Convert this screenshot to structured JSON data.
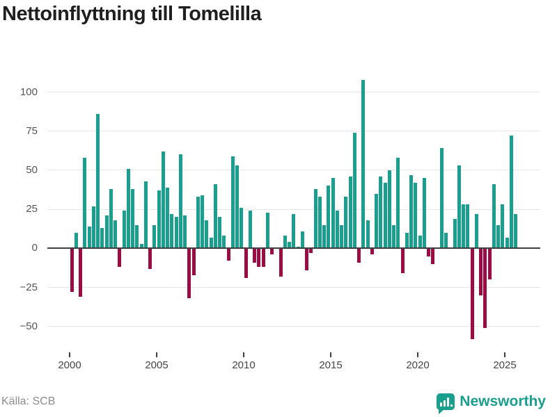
{
  "title": "Nettoinflyttning till Tomelilla",
  "footer": {
    "source": "Källa: SCB",
    "brand": "Newsworthy",
    "brand_icon": "newsworthy-speech-bubble-bar-chart-icon"
  },
  "colors": {
    "positive": "#1a9e8d",
    "negative": "#9b0c44",
    "grid": "#e6e6e6",
    "axis": "#3f3f3f",
    "title": "#1f1f1f",
    "tick_label": "#565656",
    "source_text": "#8c8c8c",
    "brand": "#1a9e8d"
  },
  "chart_data": {
    "type": "bar",
    "title": "Nettoinflyttning till Tomelilla",
    "xlabel": "",
    "ylabel": "",
    "frequency": "quarterly",
    "x_start_year": 2000,
    "points_per_year": 4,
    "x_end": "2025 Q3",
    "grid": true,
    "yticks": [
      100,
      75,
      50,
      25,
      0,
      -25,
      -50
    ],
    "ytick_labels": [
      "100",
      "75",
      "50",
      "25",
      "0",
      "−25",
      "−50"
    ],
    "xticks": [
      2000,
      2005,
      2010,
      2015,
      2020,
      2025
    ],
    "xtick_labels": [
      "2000",
      "2005",
      "2010",
      "2015",
      "2020",
      "2025"
    ],
    "ylim": [
      -62,
      112
    ],
    "positive_color": "#1a9e8d",
    "negative_color": "#9b0c44",
    "values": [
      -28,
      10,
      -31,
      58,
      14,
      27,
      86,
      13,
      21,
      38,
      18,
      -12,
      24,
      51,
      38,
      15,
      3,
      43,
      -13,
      15,
      37,
      62,
      39,
      22,
      20,
      60,
      21,
      -32,
      -17,
      33,
      34,
      18,
      7,
      41,
      20,
      8,
      -8,
      59,
      53,
      26,
      -19,
      24,
      -9,
      -12,
      -12,
      23,
      -4,
      0,
      -18,
      8,
      4,
      22,
      1,
      11,
      -14,
      -3,
      38,
      33,
      15,
      40,
      45,
      24,
      15,
      33,
      46,
      74,
      -9,
      108,
      18,
      -4,
      35,
      46,
      42,
      50,
      15,
      58,
      -16,
      10,
      47,
      42,
      8,
      45,
      -5,
      -10,
      0,
      64,
      10,
      0,
      19,
      53,
      28,
      28,
      -58,
      22,
      -30,
      -51,
      -20,
      41,
      15,
      28,
      7,
      72,
      22
    ]
  }
}
